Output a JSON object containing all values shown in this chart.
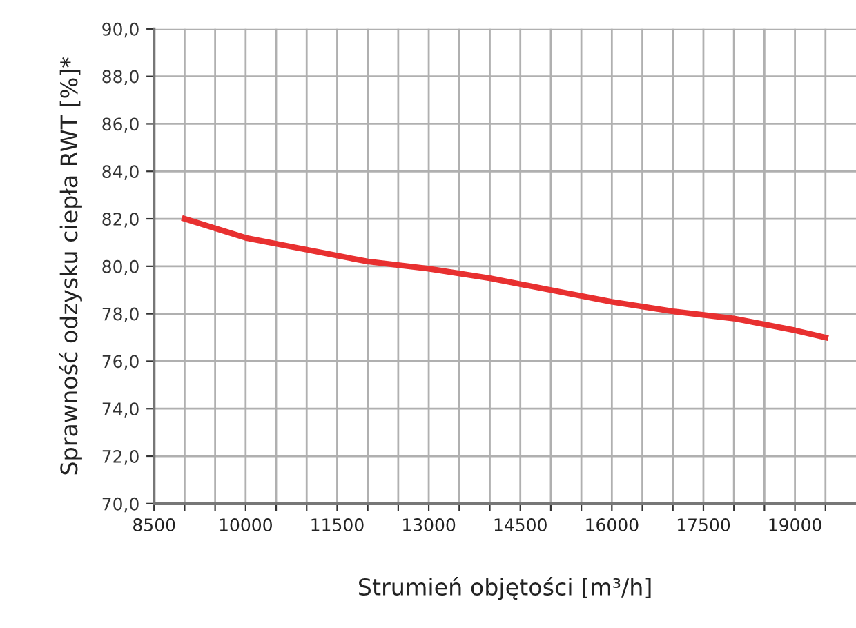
{
  "chart_data": {
    "type": "line",
    "xlabel": "Strumień objętości [m³/h]",
    "ylabel": "Sprawność odzysku ciepła RWT [%]*",
    "x": [
      9000,
      10000,
      11000,
      12000,
      13000,
      14000,
      15000,
      16000,
      17000,
      18000,
      19000,
      19500
    ],
    "series": [
      {
        "color": "#e83030",
        "values": [
          82.0,
          81.2,
          80.7,
          80.2,
          79.9,
          79.5,
          79.0,
          78.5,
          78.1,
          77.8,
          77.3,
          77.0
        ]
      }
    ],
    "xlim": [
      8500,
      20000
    ],
    "xticks": [
      8500,
      {
        "value": 9000,
        "label": null
      },
      {
        "value": 9500,
        "label": null
      },
      10000,
      {
        "value": 10500,
        "label": null
      },
      {
        "value": 11000,
        "label": null
      },
      11500,
      {
        "value": 12000,
        "label": null
      },
      {
        "value": 12500,
        "label": null
      },
      13000,
      {
        "value": 13500,
        "label": null
      },
      {
        "value": 14000,
        "label": null
      },
      14500,
      {
        "value": 15000,
        "label": null
      },
      {
        "value": 15500,
        "label": null
      },
      16000,
      {
        "value": 16500,
        "label": null
      },
      {
        "value": 17000,
        "label": null
      },
      17500,
      {
        "value": 18000,
        "label": null
      },
      {
        "value": 18500,
        "label": null
      },
      19000,
      {
        "value": 19500,
        "label": null
      }
    ],
    "ylim": [
      70,
      90
    ],
    "yticks": [
      {
        "value": 70,
        "label": "70,0"
      },
      {
        "value": 72,
        "label": "72,0"
      },
      {
        "value": 74,
        "label": "74,0"
      },
      {
        "value": 76,
        "label": "76,0"
      },
      {
        "value": 78,
        "label": "78,0"
      },
      {
        "value": 80,
        "label": "80,0"
      },
      {
        "value": 82,
        "label": "82,0"
      },
      {
        "value": 84,
        "label": "84,0"
      },
      {
        "value": 86,
        "label": "86,0"
      },
      {
        "value": 88,
        "label": "88,0"
      },
      {
        "value": 90,
        "label": "90,0"
      }
    ],
    "grid": true,
    "marker": "none",
    "line_style": "solid",
    "legend": false
  }
}
